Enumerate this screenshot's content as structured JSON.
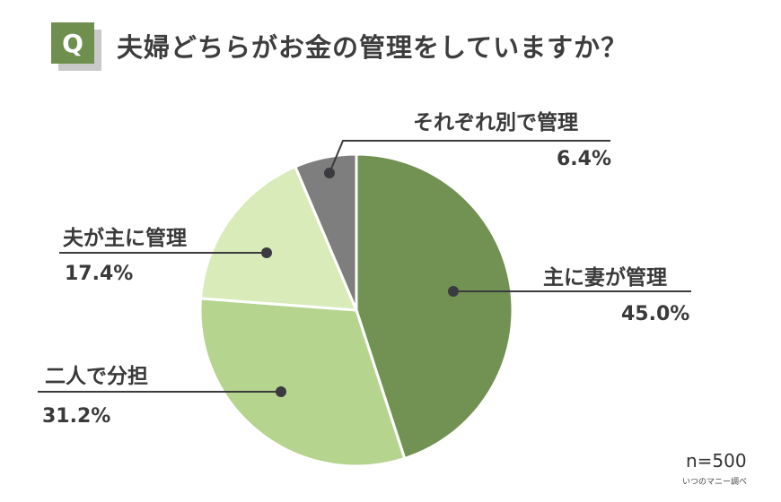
{
  "header": {
    "badge": "Q",
    "title": "夫婦どちらがお金の管理をしていますか？"
  },
  "colors": {
    "badge": "#6e8f4e",
    "wife": "#719252",
    "shared": "#b5d48e",
    "husband": "#d8ebb8",
    "separate": "#7e7e7e",
    "leader": "#3b3b3f"
  },
  "labels": {
    "wife": {
      "name": "主に妻が管理",
      "value": "45.0%"
    },
    "shared": {
      "name": "二人で分担",
      "value": "31.2%"
    },
    "husband": {
      "name": "夫が主に管理",
      "value": "17.4%"
    },
    "separate": {
      "name": "それぞれ別で管理",
      "value": "6.4%"
    }
  },
  "footer": {
    "sample": "n=500",
    "source": "いつのマニー調べ"
  },
  "chart_data": {
    "type": "pie",
    "title": "夫婦どちらがお金の管理をしていますか？",
    "categories": [
      "主に妻が管理",
      "二人で分担",
      "夫が主に管理",
      "それぞれ別で管理"
    ],
    "values": [
      45.0,
      31.2,
      17.4,
      6.4
    ],
    "unit": "%",
    "start_angle": "12 o'clock, clockwise",
    "colors": [
      "#719252",
      "#b5d48e",
      "#d8ebb8",
      "#7e7e7e"
    ],
    "annotations": [
      "n=500",
      "いつのマニー調べ"
    ],
    "legend": "none (leader-line labels)"
  }
}
